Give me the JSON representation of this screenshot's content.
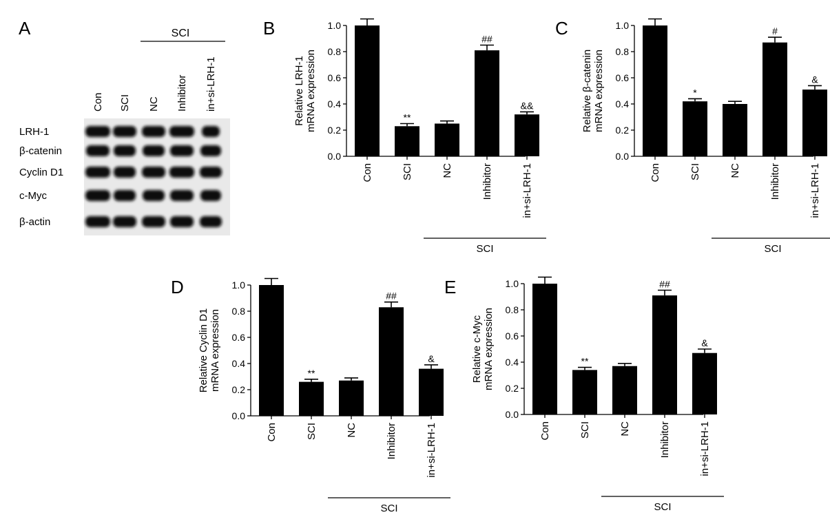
{
  "panels": {
    "A": "A",
    "B": "B",
    "C": "C",
    "D": "D",
    "E": "E"
  },
  "western_blot": {
    "group_label": "SCI",
    "lanes": [
      "Con",
      "SCI",
      "NC",
      "Inhibitor",
      "in+si-LRH-1"
    ],
    "proteins": [
      "LRH-1",
      "β-catenin",
      "Cyclin D1",
      "c-Myc",
      "β-actin"
    ]
  },
  "chart_data": [
    {
      "id": "B",
      "type": "bar",
      "categories": [
        "Con",
        "SCI",
        "NC",
        "Inhibitor",
        "in+si-LRH-1"
      ],
      "values": [
        1.0,
        0.23,
        0.25,
        0.81,
        0.32
      ],
      "errors": [
        0.05,
        0.02,
        0.02,
        0.04,
        0.02
      ],
      "annotations": [
        "",
        "**",
        "",
        "##",
        "&&"
      ],
      "ylabel": [
        "Relative LRH-1",
        "mRNA expression"
      ],
      "yticks": [
        "0.0",
        "0.2",
        "0.4",
        "0.6",
        "0.8",
        "1.0"
      ],
      "ylim": [
        0,
        1.0
      ],
      "group_label": "SCI"
    },
    {
      "id": "C",
      "type": "bar",
      "categories": [
        "Con",
        "SCI",
        "NC",
        "Inhibitor",
        "in+si-LRH-1"
      ],
      "values": [
        1.0,
        0.42,
        0.4,
        0.87,
        0.51
      ],
      "errors": [
        0.05,
        0.02,
        0.02,
        0.04,
        0.03
      ],
      "annotations": [
        "",
        "*",
        "",
        "#",
        "&"
      ],
      "ylabel": [
        "Relative β-catenin",
        "mRNA expression"
      ],
      "yticks": [
        "0.0",
        "0.2",
        "0.4",
        "0.6",
        "0.8",
        "1.0"
      ],
      "ylim": [
        0,
        1.0
      ],
      "group_label": "SCI"
    },
    {
      "id": "D",
      "type": "bar",
      "categories": [
        "Con",
        "SCI",
        "NC",
        "Inhibitor",
        "in+si-LRH-1"
      ],
      "values": [
        1.0,
        0.26,
        0.27,
        0.83,
        0.36
      ],
      "errors": [
        0.05,
        0.02,
        0.02,
        0.04,
        0.03
      ],
      "annotations": [
        "",
        "**",
        "",
        "##",
        "&"
      ],
      "ylabel": [
        "Relative Cyclin D1",
        "mRNA expression"
      ],
      "yticks": [
        "0.0",
        "0.2",
        "0.4",
        "0.6",
        "0.8",
        "1.0"
      ],
      "ylim": [
        0,
        1.0
      ],
      "group_label": "SCI"
    },
    {
      "id": "E",
      "type": "bar",
      "categories": [
        "Con",
        "SCI",
        "NC",
        "Inhibitor",
        "in+si-LRH-1"
      ],
      "values": [
        1.0,
        0.34,
        0.37,
        0.91,
        0.47
      ],
      "errors": [
        0.05,
        0.02,
        0.02,
        0.04,
        0.03
      ],
      "annotations": [
        "",
        "**",
        "",
        "##",
        "&"
      ],
      "ylabel": [
        "Relative c-Myc",
        "mRNA expression"
      ],
      "yticks": [
        "0.0",
        "0.2",
        "0.4",
        "0.6",
        "0.8",
        "1.0"
      ],
      "ylim": [
        0,
        1.0
      ],
      "group_label": "SCI"
    }
  ]
}
